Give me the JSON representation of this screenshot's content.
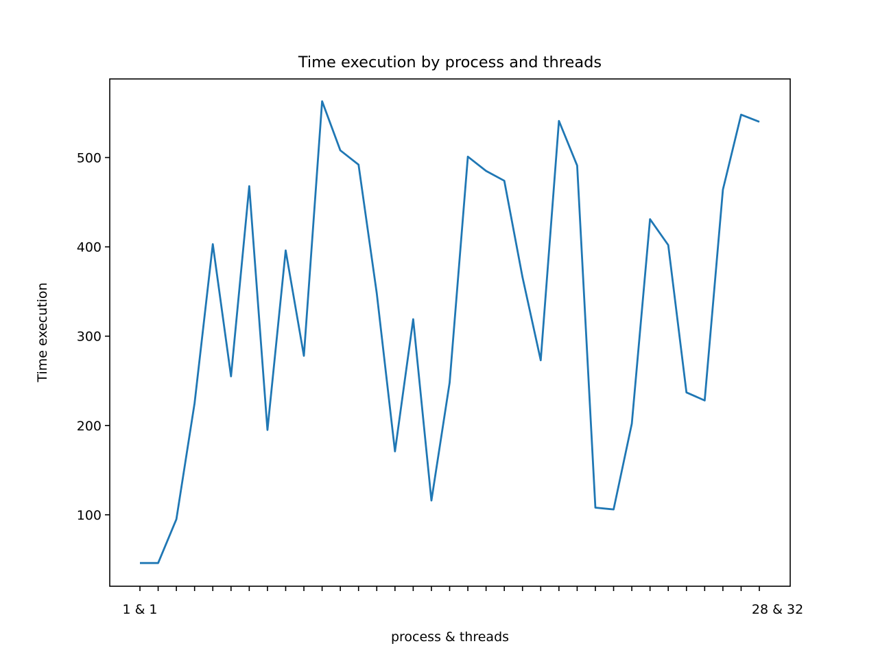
{
  "chart_data": {
    "type": "line",
    "title": "Time execution by process and threads",
    "xlabel": "process & threads",
    "ylabel": "Time execution",
    "x_tick_labels_visible": [
      "1 & 1",
      "",
      "",
      "",
      "",
      "",
      "",
      "",
      "",
      "",
      "",
      "",
      "",
      "",
      "",
      "",
      "",
      "",
      "",
      "",
      "",
      "",
      "",
      "",
      "",
      "",
      "",
      "",
      "",
      "",
      "",
      "",
      "",
      "",
      "",
      "28 & 32"
    ],
    "y_ticks": [
      100,
      200,
      300,
      400,
      500
    ],
    "ylim": [
      20,
      588
    ],
    "grid": false,
    "series": [
      {
        "color": "#1f77b4",
        "values": [
          46,
          46,
          95,
          225,
          403,
          255,
          468,
          195,
          396,
          278,
          563,
          508,
          492,
          348,
          171,
          319,
          116,
          248,
          501,
          485,
          474,
          366,
          273,
          541,
          491,
          108,
          106,
          202,
          431,
          402,
          237,
          228,
          464,
          548,
          540
        ]
      }
    ]
  }
}
